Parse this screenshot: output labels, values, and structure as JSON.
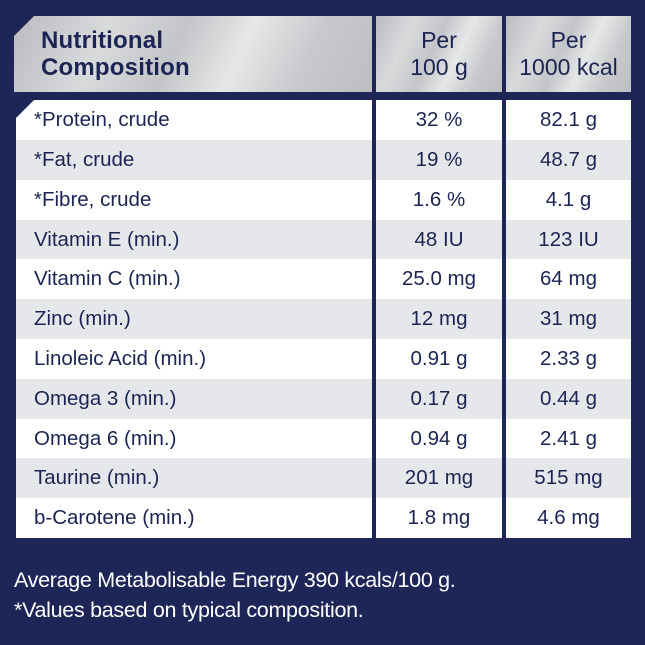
{
  "header": {
    "title_line1": "Nutritional",
    "title_line2": "Composition",
    "col2_line1": "Per",
    "col2_line2": "100 g",
    "col3_line1": "Per",
    "col3_line2": "1000 kcal"
  },
  "rows": [
    {
      "nutrient": "*Protein, crude",
      "per_100g": "32 %",
      "per_1000kcal": "82.1 g"
    },
    {
      "nutrient": "*Fat, crude",
      "per_100g": "19 %",
      "per_1000kcal": "48.7 g"
    },
    {
      "nutrient": "*Fibre, crude",
      "per_100g": "1.6 %",
      "per_1000kcal": "4.1 g"
    },
    {
      "nutrient": "Vitamin E (min.)",
      "per_100g": "48 IU",
      "per_1000kcal": "123 IU"
    },
    {
      "nutrient": "Vitamin C (min.)",
      "per_100g": "25.0 mg",
      "per_1000kcal": "64 mg"
    },
    {
      "nutrient": "Zinc (min.)",
      "per_100g": "12 mg",
      "per_1000kcal": "31 mg"
    },
    {
      "nutrient": "Linoleic Acid (min.)",
      "per_100g": "0.91 g",
      "per_1000kcal": "2.33 g"
    },
    {
      "nutrient": "Omega 3 (min.)",
      "per_100g": "0.17 g",
      "per_1000kcal": "0.44 g"
    },
    {
      "nutrient": "Omega 6 (min.)",
      "per_100g": "0.94 g",
      "per_1000kcal": "2.41 g"
    },
    {
      "nutrient": "Taurine (min.)",
      "per_100g": "201 mg",
      "per_1000kcal": "515 mg"
    },
    {
      "nutrient": "b-Carotene (min.)",
      "per_100g": "1.8 mg",
      "per_1000kcal": "4.6 mg"
    }
  ],
  "footer": {
    "energy_note": "Average Metabolisable Energy 390 kcals/100 g.",
    "values_note": "*Values based on typical composition."
  },
  "colors": {
    "background": "#1e2658",
    "text_dark": "#1b2452",
    "row_alt": "#e6e7eb",
    "row": "#ffffff"
  }
}
